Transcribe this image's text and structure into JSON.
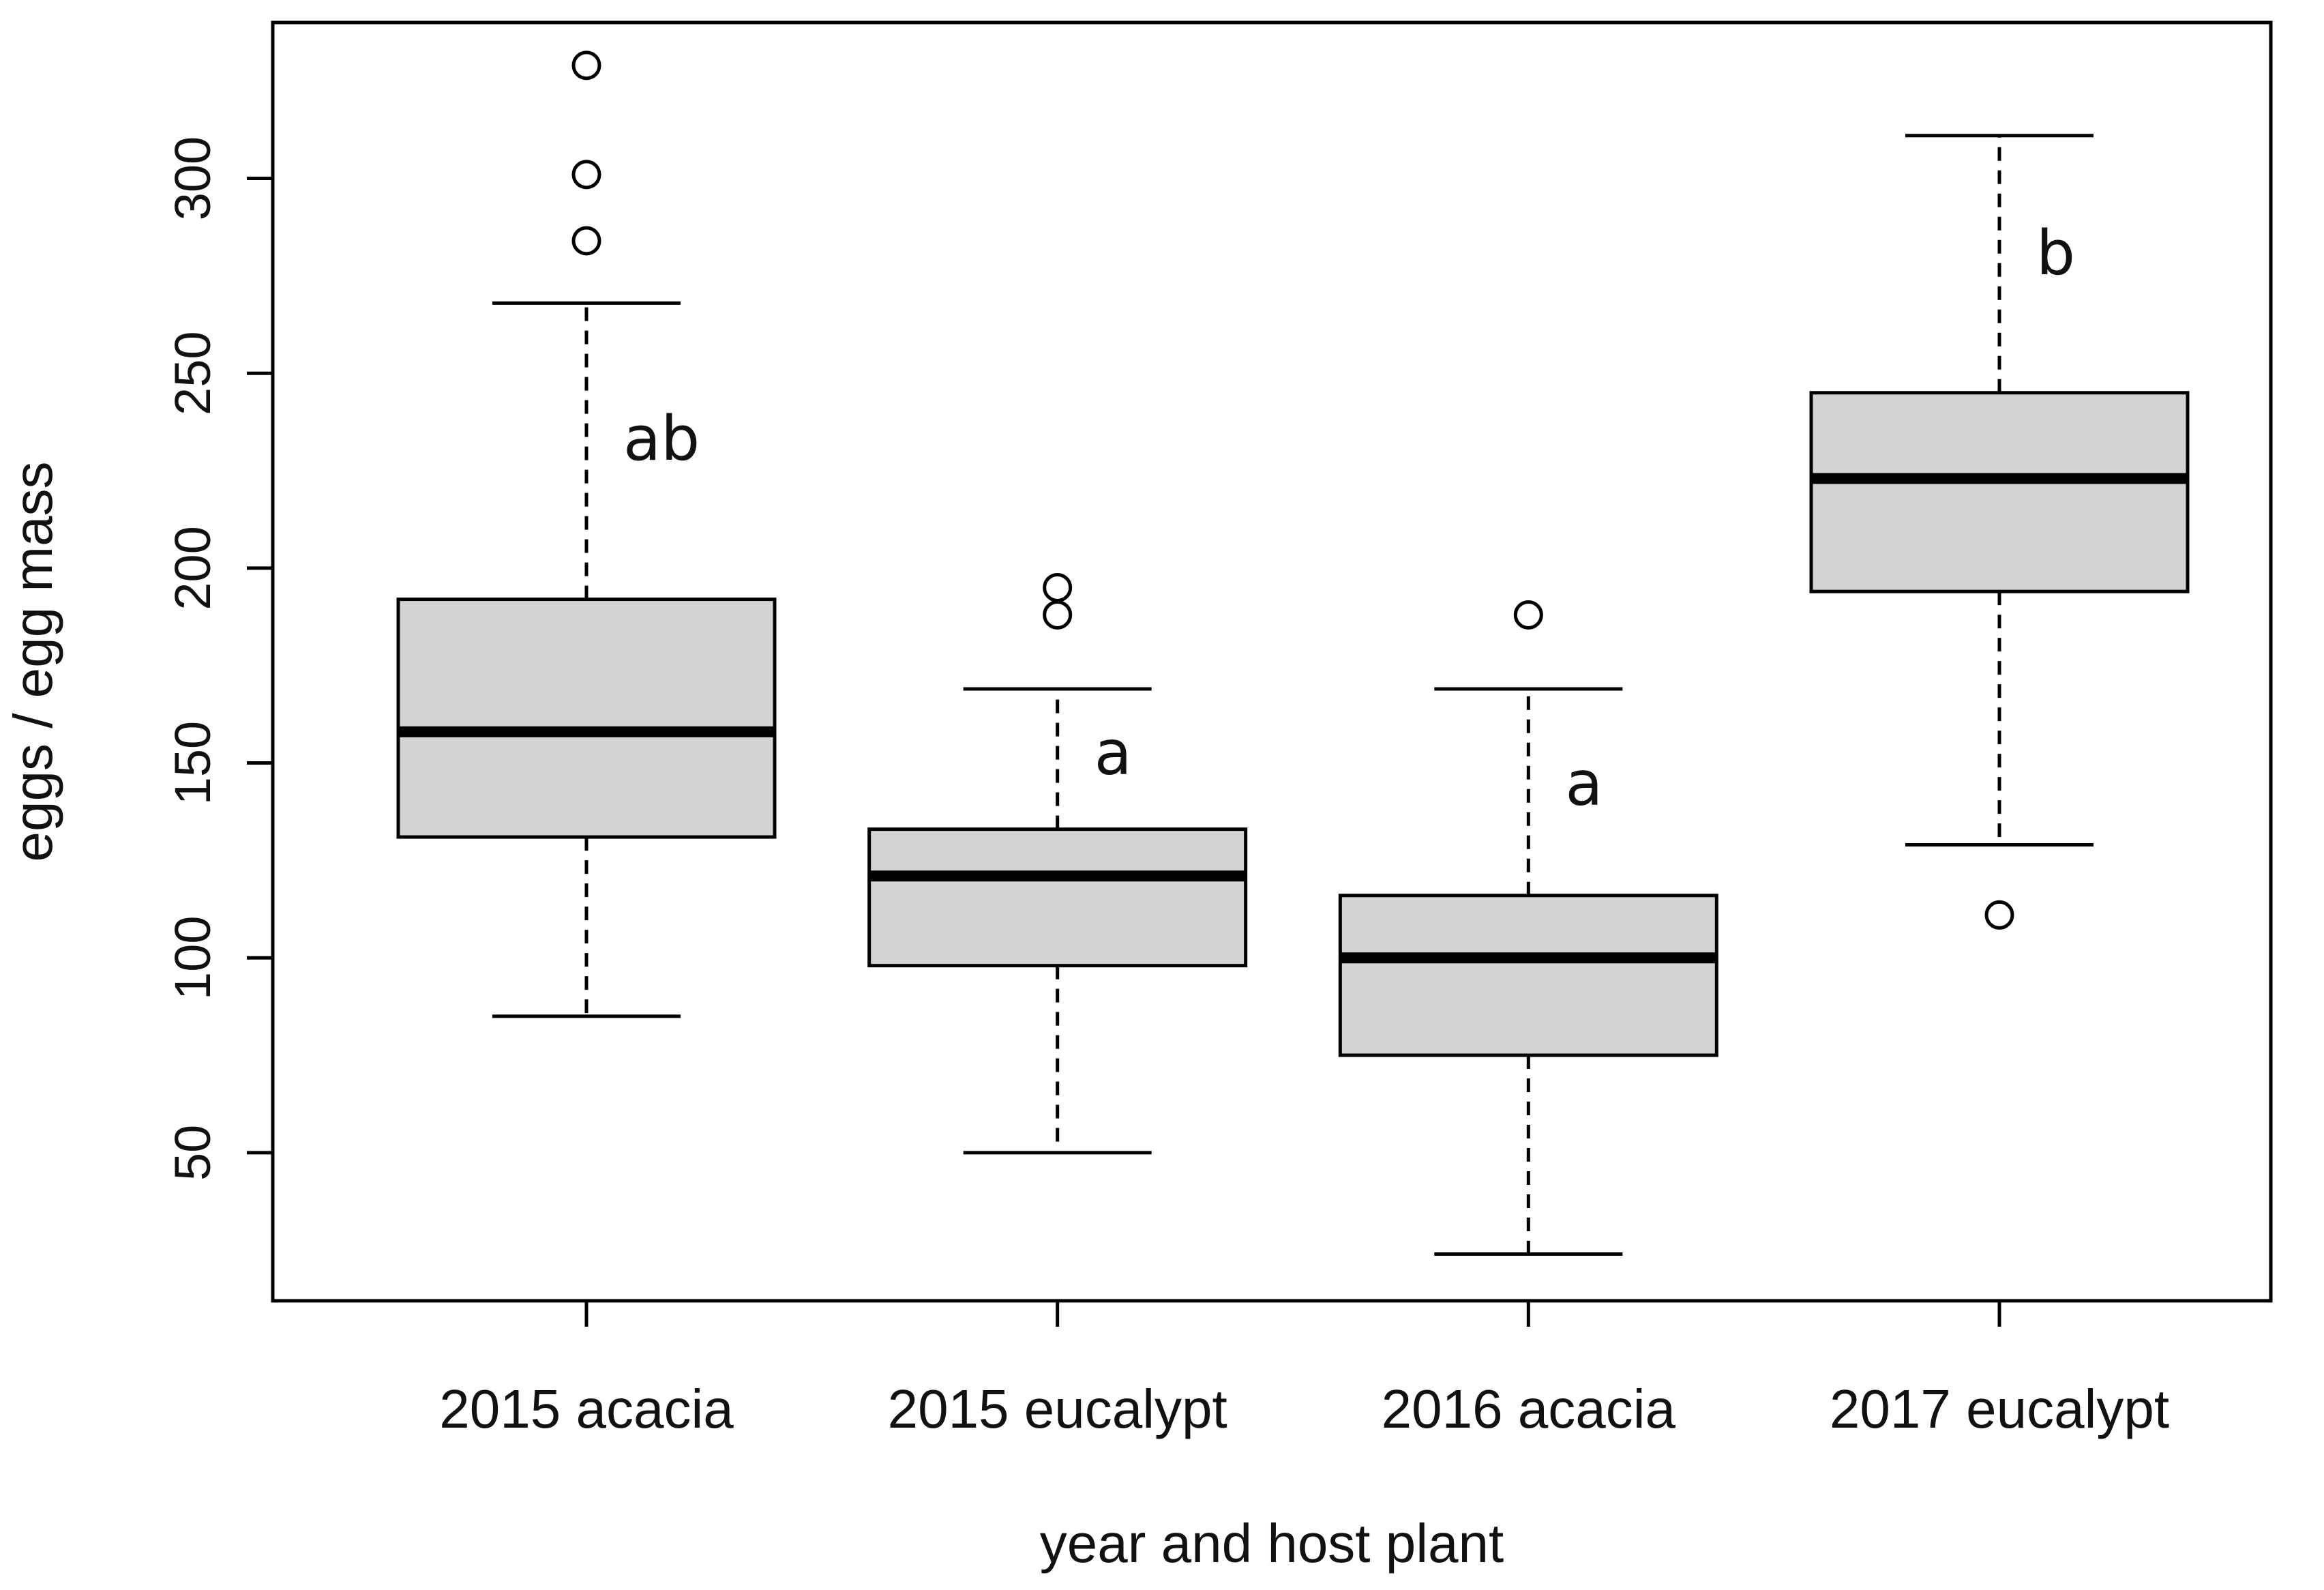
{
  "chart_data": {
    "type": "boxplot",
    "title": "",
    "xlabel": "year and host plant",
    "ylabel": "eggs / egg mass",
    "ylim": [
      12,
      340
    ],
    "yticks": [
      50,
      100,
      150,
      200,
      250,
      300
    ],
    "categories": [
      "2015 acacia",
      "2015 eucalypt",
      "2016 acacia",
      "2017 eucalypt"
    ],
    "boxes": [
      {
        "category": "2015 acacia",
        "whisker_low": 85,
        "q1": 131,
        "median": 158,
        "q3": 192,
        "whisker_high": 268,
        "outliers": [
          284,
          301,
          329
        ],
        "letter": "ab"
      },
      {
        "category": "2015 eucalypt",
        "whisker_low": 50,
        "q1": 98,
        "median": 121,
        "q3": 133,
        "whisker_high": 169,
        "outliers": [
          188,
          195
        ],
        "letter": "a"
      },
      {
        "category": "2016 acacia",
        "whisker_low": 24,
        "q1": 75,
        "median": 100,
        "q3": 116,
        "whisker_high": 169,
        "outliers": [
          188
        ],
        "letter": "a"
      },
      {
        "category": "2017 eucalypt",
        "whisker_low": 129,
        "q1": 194,
        "median": 223,
        "q3": 245,
        "whisker_high": 311,
        "outliers": [
          111
        ],
        "letter": "b"
      }
    ],
    "colors": {
      "box_fill": "#d3d3d3",
      "stroke": "#000000"
    }
  }
}
